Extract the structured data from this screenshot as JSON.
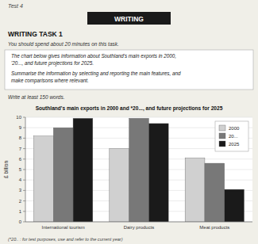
{
  "chart_data": {
    "type": "bar",
    "title": "Southland's main exports in 2000 and *20...,  and future projections for 2025",
    "annotations": [
      "Test 4",
      "WRITING",
      "WRITING TASK 1",
      "You should spend about 20 minutes on this task.",
      "The chart below gives information about Southland's main exports in 2000,\n'20..., and future projections for 2025.",
      "Summarise the information by selecting and reporting the main features, and\nmake comparisons where relevant.",
      "Write at least 150 words.",
      "(*20.. : for test purposes, use and refer to the current year)"
    ],
    "categories": [
      "International tourism",
      "Dairy products",
      "Meat products"
    ],
    "series": [
      {
        "name": "2000",
        "color": "#d0d0d0",
        "values": [
          8.2,
          7.0,
          6.1
        ]
      },
      {
        "name": "20...",
        "color": "#787878",
        "values": [
          9.0,
          9.9,
          5.6
        ]
      },
      {
        "name": "2025",
        "color": "#1a1a1a",
        "values": [
          9.9,
          9.4,
          3.1
        ]
      }
    ],
    "ylabel": "£ billion",
    "ylim": [
      0,
      10
    ],
    "yticks": [
      0,
      1,
      2,
      3,
      4,
      5,
      6,
      7,
      8,
      9,
      10
    ],
    "grid": true,
    "legend": "upper right"
  }
}
